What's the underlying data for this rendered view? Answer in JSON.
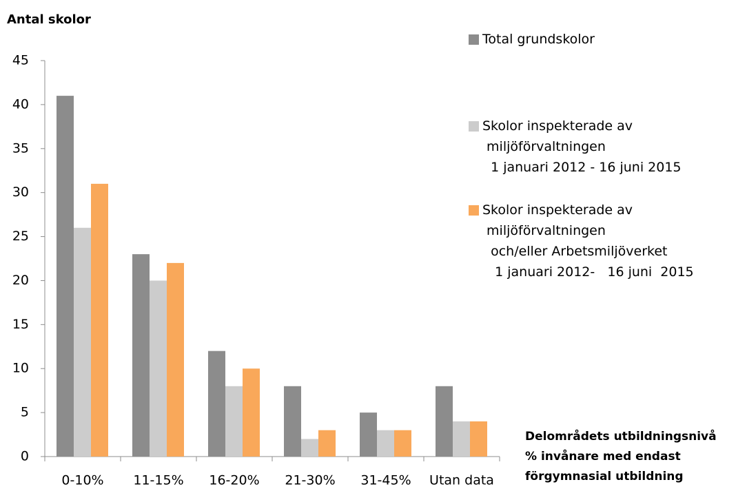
{
  "chart_data": {
    "type": "bar",
    "y_axis_label": "Antal skolor",
    "x_axis_label": "Delområdets utbildningsnivå\n% invånare med endast\nförgymnasial utbildning",
    "categories": [
      "0-10%",
      "11-15%",
      "16-20%",
      "21-30%",
      "31-45%",
      "Utan data"
    ],
    "series": [
      {
        "name": "Total grundskolor",
        "color": "#8c8c8c",
        "values": [
          41,
          23,
          12,
          8,
          5,
          8
        ]
      },
      {
        "name": "Skolor inspekterade av\n miljöförvaltningen\n  1 januari 2012 - 16 juni 2015",
        "color": "#cccccc",
        "values": [
          26,
          20,
          8,
          2,
          3,
          4
        ]
      },
      {
        "name": "Skolor inspekterade av\n miljöförvaltningen\n  och/eller Arbetsmiljöverket\n   1 januari 2012-   16 juni  2015",
        "color": "#f9a85a",
        "values": [
          31,
          22,
          10,
          3,
          3,
          4
        ]
      }
    ],
    "ylim": [
      0,
      45
    ],
    "yticks": [
      0,
      5,
      10,
      15,
      20,
      25,
      30,
      35,
      40,
      45
    ],
    "grid": false,
    "legend": "right"
  }
}
